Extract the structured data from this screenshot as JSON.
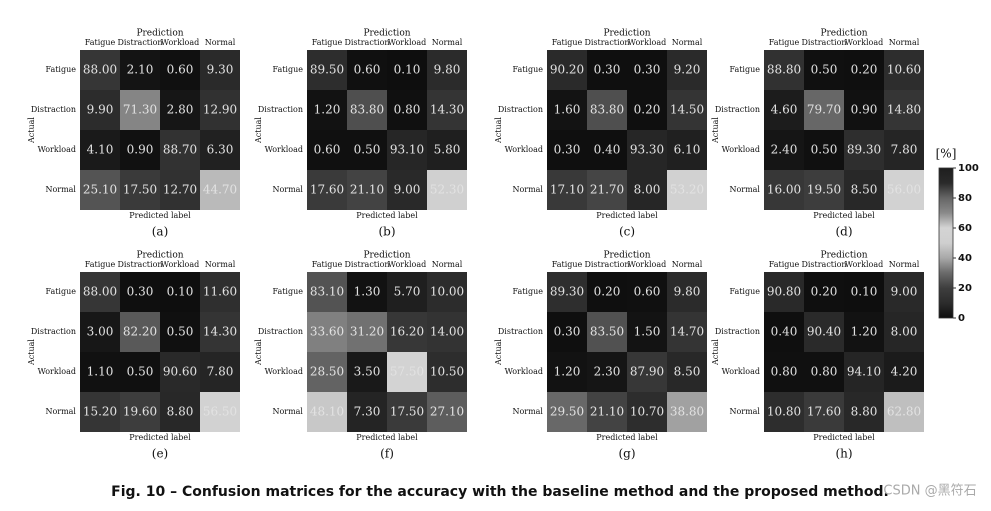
{
  "chart_data": [
    {
      "type": "heatmap",
      "title": "Prediction",
      "xlabel": "Predicted label",
      "ylabel": "Actual",
      "sublabel": "(a)",
      "x_categories": [
        "Fatigue",
        "Distraction",
        "Workload",
        "Normal"
      ],
      "y_categories": [
        "Fatigue",
        "Distraction",
        "Workload",
        "Normal"
      ],
      "values": [
        [
          88.0,
          2.1,
          0.6,
          9.3
        ],
        [
          9.9,
          71.3,
          2.8,
          12.9
        ],
        [
          4.1,
          0.9,
          88.7,
          6.3
        ],
        [
          25.1,
          17.5,
          12.7,
          44.7
        ]
      ],
      "value_labels": [
        [
          "88.00",
          "2.10",
          "0.60",
          "9.30"
        ],
        [
          "9.90",
          "71.30",
          "2.80",
          "12.90"
        ],
        [
          "4.10",
          "0.90",
          "88.70",
          "6.30"
        ],
        [
          "25.10",
          "17.50",
          "12.70",
          "44.70"
        ]
      ]
    },
    {
      "type": "heatmap",
      "title": "Prediction",
      "xlabel": "Predicted label",
      "ylabel": "Actual",
      "sublabel": "(b)",
      "x_categories": [
        "Fatigue",
        "Distraction",
        "Workload",
        "Normal"
      ],
      "y_categories": [
        "Fatigue",
        "Distraction",
        "Workload",
        "Normal"
      ],
      "values": [
        [
          89.5,
          0.6,
          0.1,
          9.8
        ],
        [
          1.2,
          83.8,
          0.8,
          14.3
        ],
        [
          0.6,
          0.5,
          93.1,
          5.8
        ],
        [
          17.6,
          21.1,
          9.0,
          52.3
        ]
      ],
      "value_labels": [
        [
          "89.50",
          "0.60",
          "0.10",
          "9.80"
        ],
        [
          "1.20",
          "83.80",
          "0.80",
          "14.30"
        ],
        [
          "0.60",
          "0.50",
          "93.10",
          "5.80"
        ],
        [
          "17.60",
          "21.10",
          "9.00",
          "52.30"
        ]
      ]
    },
    {
      "type": "heatmap",
      "title": "Prediction",
      "xlabel": "Predicted label",
      "ylabel": "Actual",
      "sublabel": "(c)",
      "x_categories": [
        "Fatigue",
        "Distraction",
        "Workload",
        "Normal"
      ],
      "y_categories": [
        "Fatigue",
        "Distraction",
        "Workload",
        "Normal"
      ],
      "values": [
        [
          90.2,
          0.3,
          0.3,
          9.2
        ],
        [
          1.6,
          83.8,
          0.2,
          14.5
        ],
        [
          0.3,
          0.4,
          93.3,
          6.1
        ],
        [
          17.1,
          21.7,
          8.0,
          53.2
        ]
      ],
      "value_labels": [
        [
          "90.20",
          "0.30",
          "0.30",
          "9.20"
        ],
        [
          "1.60",
          "83.80",
          "0.20",
          "14.50"
        ],
        [
          "0.30",
          "0.40",
          "93.30",
          "6.10"
        ],
        [
          "17.10",
          "21.70",
          "8.00",
          "53.20"
        ]
      ]
    },
    {
      "type": "heatmap",
      "title": "Prediction",
      "xlabel": "Predicted label",
      "ylabel": "Actual",
      "sublabel": "(d)",
      "x_categories": [
        "Fatigue",
        "Distraction",
        "Workload",
        "Normal"
      ],
      "y_categories": [
        "Fatigue",
        "Distraction",
        "Workload",
        "Normal"
      ],
      "values": [
        [
          88.8,
          0.5,
          0.2,
          10.6
        ],
        [
          4.6,
          79.7,
          0.9,
          14.8
        ],
        [
          2.4,
          0.5,
          89.3,
          7.8
        ],
        [
          16.0,
          19.5,
          8.5,
          56.0
        ]
      ],
      "value_labels": [
        [
          "88.80",
          "0.50",
          "0.20",
          "10.60"
        ],
        [
          "4.60",
          "79.70",
          "0.90",
          "14.80"
        ],
        [
          "2.40",
          "0.50",
          "89.30",
          "7.80"
        ],
        [
          "16.00",
          "19.50",
          "8.50",
          "56.00"
        ]
      ]
    },
    {
      "type": "heatmap",
      "title": "Prediction",
      "xlabel": "Predicted label",
      "ylabel": "Actual",
      "sublabel": "(e)",
      "x_categories": [
        "Fatigue",
        "Distraction",
        "Workload",
        "Normal"
      ],
      "y_categories": [
        "Fatigue",
        "Distraction",
        "Workload",
        "Normal"
      ],
      "values": [
        [
          88.0,
          0.3,
          0.1,
          11.6
        ],
        [
          3.0,
          82.2,
          0.5,
          14.3
        ],
        [
          1.1,
          0.5,
          90.6,
          7.8
        ],
        [
          15.2,
          19.6,
          8.8,
          56.5
        ]
      ],
      "value_labels": [
        [
          "88.00",
          "0.30",
          "0.10",
          "11.60"
        ],
        [
          "3.00",
          "82.20",
          "0.50",
          "14.30"
        ],
        [
          "1.10",
          "0.50",
          "90.60",
          "7.80"
        ],
        [
          "15.20",
          "19.60",
          "8.80",
          "56.50"
        ]
      ]
    },
    {
      "type": "heatmap",
      "title": "Prediction",
      "xlabel": "Predicted label",
      "ylabel": "Actual",
      "sublabel": "(f)",
      "x_categories": [
        "Fatigue",
        "Distraction",
        "Workload",
        "Normal"
      ],
      "y_categories": [
        "Fatigue",
        "Distraction",
        "Workload",
        "Normal"
      ],
      "values": [
        [
          83.1,
          1.3,
          5.7,
          10.0
        ],
        [
          33.6,
          31.2,
          16.2,
          14.0
        ],
        [
          28.5,
          3.5,
          57.5,
          10.5
        ],
        [
          48.1,
          7.3,
          17.5,
          27.1
        ]
      ],
      "value_labels": [
        [
          "83.10",
          "1.30",
          "5.70",
          "10.00"
        ],
        [
          "33.60",
          "31.20",
          "16.20",
          "14.00"
        ],
        [
          "28.50",
          "3.50",
          "57.50",
          "10.50"
        ],
        [
          "48.10",
          "7.30",
          "17.50",
          "27.10"
        ]
      ]
    },
    {
      "type": "heatmap",
      "title": "Prediction",
      "xlabel": "Predicted label",
      "ylabel": "Actual",
      "sublabel": "(g)",
      "x_categories": [
        "Fatigue",
        "Distraction",
        "Workload",
        "Normal"
      ],
      "y_categories": [
        "Fatigue",
        "Distraction",
        "Workload",
        "Normal"
      ],
      "values": [
        [
          89.3,
          0.2,
          0.6,
          9.8
        ],
        [
          0.3,
          83.5,
          1.5,
          14.7
        ],
        [
          1.2,
          2.3,
          87.9,
          8.5
        ],
        [
          29.5,
          21.1,
          10.7,
          38.8
        ]
      ],
      "value_labels": [
        [
          "89.30",
          "0.20",
          "0.60",
          "9.80"
        ],
        [
          "0.30",
          "83.50",
          "1.50",
          "14.70"
        ],
        [
          "1.20",
          "2.30",
          "87.90",
          "8.50"
        ],
        [
          "29.50",
          "21.10",
          "10.70",
          "38.80"
        ]
      ]
    },
    {
      "type": "heatmap",
      "title": "Prediction",
      "xlabel": "Predicted label",
      "ylabel": "Actual",
      "sublabel": "(h)",
      "x_categories": [
        "Fatigue",
        "Distraction",
        "Workload",
        "Normal"
      ],
      "y_categories": [
        "Fatigue",
        "Distraction",
        "Workload",
        "Normal"
      ],
      "values": [
        [
          90.8,
          0.2,
          0.1,
          9.0
        ],
        [
          0.4,
          90.4,
          1.2,
          8.0
        ],
        [
          0.8,
          0.8,
          94.1,
          4.2
        ],
        [
          10.8,
          17.6,
          8.8,
          62.8
        ]
      ],
      "value_labels": [
        [
          "90.80",
          "0.20",
          "0.10",
          "9.00"
        ],
        [
          "0.40",
          "90.40",
          "1.20",
          "8.00"
        ],
        [
          "0.80",
          "0.80",
          "94.10",
          "4.20"
        ],
        [
          "10.80",
          "17.60",
          "8.80",
          "62.80"
        ]
      ]
    }
  ],
  "colorbar": {
    "label": "[%]",
    "lim": [
      0,
      100
    ],
    "ticks": [
      0,
      20,
      40,
      60,
      80,
      100
    ],
    "colormap": [
      "#0e0e0e",
      "#2c2c2c",
      "#3e3e3e",
      "#6a6a6a",
      "#a8a8a8",
      "#cfcfcf",
      "#d4d4d4",
      "#8a8a8a",
      "#666666",
      "#2a2a2a",
      "#1e1e1e"
    ]
  },
  "caption": "Fig. 10 – Confusion matrices for the accuracy with the baseline method and the proposed method.",
  "watermark": "CSDN @黑符石"
}
